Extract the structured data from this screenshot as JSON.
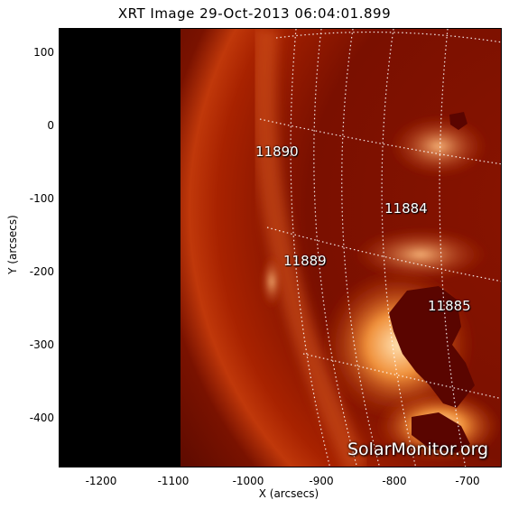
{
  "title": "XRT Image 29-Oct-2013 06:04:01.899",
  "xaxis_title": "X (arcsecs)",
  "yaxis_title": "Y (arcsecs)",
  "x_ticks": [
    "-1200",
    "-1100",
    "-1000",
    "-900",
    "-800",
    "-700"
  ],
  "y_ticks": [
    "100",
    "0",
    "-100",
    "-200",
    "-300",
    "-400"
  ],
  "active_regions": [
    {
      "id": "11890",
      "label": "11890"
    },
    {
      "id": "11884",
      "label": "11884"
    },
    {
      "id": "11889",
      "label": "11889"
    },
    {
      "id": "11885",
      "label": "11885"
    }
  ],
  "watermark": "SolarMonitor.org",
  "colors": {
    "space": "#000000",
    "corona_dark": "#6e0d00",
    "corona_mid": "#b42a00",
    "corona_bright": "#f2a86b",
    "saturated": "#5a0500",
    "grid": "#ffffff"
  }
}
